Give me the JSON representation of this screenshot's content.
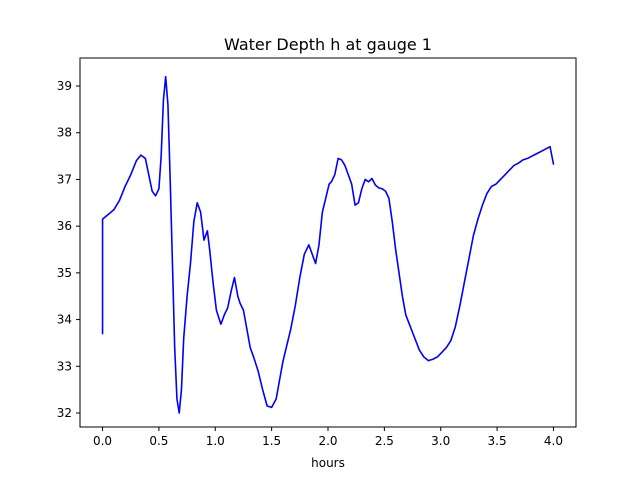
{
  "chart_data": {
    "type": "line",
    "title": "Water Depth h at gauge 1",
    "xlabel": "hours",
    "ylabel": "",
    "xlim": [
      -0.2,
      4.2
    ],
    "ylim": [
      31.7,
      39.6
    ],
    "grid": false,
    "xticks": [
      0.0,
      0.5,
      1.0,
      1.5,
      2.0,
      2.5,
      3.0,
      3.5,
      4.0
    ],
    "xtick_labels": [
      "0.0",
      "0.5",
      "1.0",
      "1.5",
      "2.0",
      "2.5",
      "3.0",
      "3.5",
      "4.0"
    ],
    "yticks": [
      32,
      33,
      34,
      35,
      36,
      37,
      38,
      39
    ],
    "ytick_labels": [
      "32",
      "33",
      "34",
      "35",
      "36",
      "37",
      "38",
      "39"
    ],
    "line_color": "#0000ff",
    "series": [
      {
        "x": [
          0.0,
          0.0,
          0.05,
          0.1,
          0.15,
          0.2,
          0.25,
          0.3,
          0.34,
          0.38,
          0.41,
          0.44,
          0.47,
          0.5,
          0.52,
          0.54,
          0.56,
          0.58,
          0.6,
          0.62,
          0.64,
          0.66,
          0.68,
          0.7,
          0.72,
          0.75,
          0.78,
          0.81,
          0.84,
          0.87,
          0.9,
          0.93,
          0.95,
          0.98,
          1.01,
          1.05,
          1.08,
          1.11,
          1.14,
          1.17,
          1.2,
          1.22,
          1.25,
          1.28,
          1.31,
          1.34,
          1.38,
          1.42,
          1.46,
          1.5,
          1.54,
          1.57,
          1.6,
          1.63,
          1.67,
          1.71,
          1.75,
          1.79,
          1.83,
          1.86,
          1.89,
          1.92,
          1.95,
          1.98,
          2.01,
          2.03,
          2.06,
          2.09,
          2.12,
          2.15,
          2.18,
          2.21,
          2.24,
          2.27,
          2.3,
          2.33,
          2.36,
          2.39,
          2.42,
          2.45,
          2.48,
          2.51,
          2.54,
          2.57,
          2.6,
          2.63,
          2.66,
          2.69,
          2.73,
          2.77,
          2.81,
          2.85,
          2.89,
          2.93,
          2.97,
          3.01,
          3.05,
          3.09,
          3.13,
          3.17,
          3.21,
          3.25,
          3.29,
          3.33,
          3.37,
          3.41,
          3.45,
          3.49,
          3.53,
          3.57,
          3.61,
          3.65,
          3.69,
          3.73,
          3.77,
          3.81,
          3.85,
          3.89,
          3.93,
          3.97,
          4.0
        ],
        "y": [
          33.7,
          36.15,
          36.25,
          36.35,
          36.55,
          36.85,
          37.1,
          37.4,
          37.52,
          37.45,
          37.1,
          36.75,
          36.65,
          36.8,
          37.5,
          38.7,
          39.2,
          38.6,
          37.0,
          35.2,
          33.4,
          32.3,
          32.0,
          32.5,
          33.6,
          34.5,
          35.2,
          36.1,
          36.5,
          36.3,
          35.7,
          35.9,
          35.5,
          34.8,
          34.2,
          33.9,
          34.1,
          34.25,
          34.6,
          34.9,
          34.5,
          34.35,
          34.2,
          33.8,
          33.4,
          33.2,
          32.9,
          32.5,
          32.15,
          32.12,
          32.3,
          32.7,
          33.1,
          33.4,
          33.8,
          34.3,
          34.9,
          35.4,
          35.6,
          35.4,
          35.2,
          35.6,
          36.3,
          36.6,
          36.9,
          36.95,
          37.1,
          37.45,
          37.42,
          37.3,
          37.1,
          36.9,
          36.45,
          36.5,
          36.8,
          37.0,
          36.95,
          37.02,
          36.88,
          36.82,
          36.8,
          36.75,
          36.6,
          36.1,
          35.5,
          35.0,
          34.5,
          34.1,
          33.85,
          33.6,
          33.35,
          33.2,
          33.12,
          33.15,
          33.2,
          33.3,
          33.4,
          33.55,
          33.85,
          34.3,
          34.8,
          35.3,
          35.8,
          36.15,
          36.45,
          36.7,
          36.85,
          36.9,
          37.0,
          37.1,
          37.2,
          37.3,
          37.35,
          37.42,
          37.45,
          37.5,
          37.55,
          37.6,
          37.65,
          37.7,
          37.33
        ]
      }
    ]
  }
}
